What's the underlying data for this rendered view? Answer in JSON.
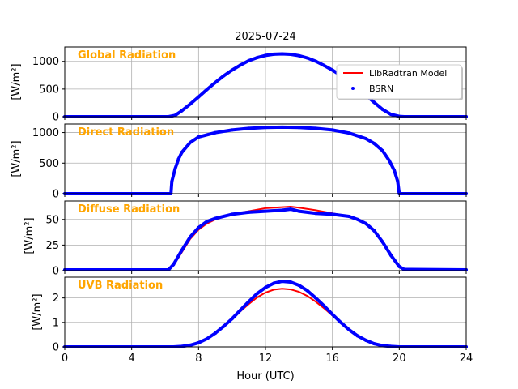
{
  "colors": {
    "model": "#ff0000",
    "obs": "#0000ff",
    "panel_title": "#ffa500",
    "grid": "#b0b0b0"
  },
  "figure": {
    "title": "2025-07-24",
    "xlabel": "Hour (UTC)"
  },
  "legend": {
    "model_label": "LibRadtran Model",
    "obs_label": "BSRN",
    "placement": "top-right of first panel"
  },
  "chart_data": [
    {
      "type": "line",
      "title": "Global Radiation",
      "xlabel": "",
      "ylabel": "[W/m²]",
      "xlim": [
        0,
        24
      ],
      "ylim": [
        0,
        1260
      ],
      "xticks": [
        0,
        4,
        8,
        12,
        16,
        20,
        24
      ],
      "yticks": [
        0,
        500,
        1000
      ],
      "grid": true,
      "series": [
        {
          "name": "LibRadtran Model",
          "style": "line",
          "x": [
            0,
            6.2,
            6.6,
            7,
            7.5,
            8,
            8.5,
            9,
            9.5,
            10,
            10.5,
            11,
            11.5,
            12,
            12.5,
            13,
            13.5,
            14,
            14.5,
            15,
            15.5,
            16,
            16.5,
            17,
            17.5,
            18,
            18.5,
            19,
            19.5,
            20,
            20.3,
            24
          ],
          "y": [
            0,
            0,
            25,
            105,
            225,
            355,
            490,
            615,
            735,
            840,
            930,
            1010,
            1065,
            1105,
            1128,
            1132,
            1125,
            1100,
            1060,
            1000,
            925,
            840,
            745,
            635,
            515,
            385,
            255,
            130,
            40,
            5,
            0,
            0
          ]
        },
        {
          "name": "BSRN",
          "style": "dots",
          "x": [
            0,
            6.2,
            6.6,
            7,
            7.5,
            8,
            8.5,
            9,
            9.5,
            10,
            10.5,
            11,
            11.5,
            12,
            12.5,
            13,
            13.5,
            14,
            14.5,
            15,
            15.5,
            16,
            16.5,
            17,
            17.5,
            18,
            18.5,
            19,
            19.5,
            20,
            20.3,
            24
          ],
          "y": [
            0,
            0,
            25,
            108,
            228,
            358,
            492,
            618,
            738,
            842,
            933,
            1012,
            1068,
            1108,
            1130,
            1135,
            1128,
            1103,
            1062,
            1003,
            928,
            843,
            748,
            638,
            518,
            388,
            258,
            132,
            42,
            6,
            0,
            0
          ]
        }
      ]
    },
    {
      "type": "line",
      "title": "Direct Radiation",
      "xlabel": "",
      "ylabel": "[W/m²]",
      "xlim": [
        0,
        24
      ],
      "ylim": [
        0,
        1140
      ],
      "xticks": [
        0,
        4,
        8,
        12,
        16,
        20,
        24
      ],
      "yticks": [
        0,
        500,
        1000
      ],
      "grid": true,
      "series": [
        {
          "name": "LibRadtran Model",
          "style": "line",
          "x": [
            0,
            6.35,
            6.4,
            6.6,
            6.8,
            7,
            7.5,
            8,
            9,
            10,
            11,
            12,
            13,
            14,
            15,
            16,
            17,
            18,
            18.5,
            19,
            19.4,
            19.7,
            19.9,
            20,
            24
          ],
          "y": [
            0,
            0,
            210,
            420,
            570,
            680,
            840,
            930,
            1000,
            1040,
            1065,
            1080,
            1085,
            1080,
            1065,
            1040,
            990,
            900,
            820,
            700,
            540,
            380,
            200,
            0,
            0
          ]
        },
        {
          "name": "BSRN",
          "style": "dots",
          "x": [
            0,
            6.35,
            6.4,
            6.6,
            6.8,
            7,
            7.5,
            8,
            9,
            10,
            11,
            12,
            13,
            14,
            15,
            16,
            17,
            18,
            18.5,
            19,
            19.4,
            19.7,
            19.9,
            20,
            24
          ],
          "y": [
            0,
            0,
            200,
            410,
            565,
            678,
            838,
            928,
            998,
            1042,
            1068,
            1083,
            1088,
            1083,
            1068,
            1042,
            992,
            902,
            822,
            702,
            542,
            382,
            205,
            0,
            0
          ]
        }
      ]
    },
    {
      "type": "line",
      "title": "Diffuse Radiation",
      "xlabel": "",
      "ylabel": "[W/m²]",
      "xlim": [
        0,
        24
      ],
      "ylim": [
        0,
        68
      ],
      "xticks": [
        0,
        4,
        8,
        12,
        16,
        20,
        24
      ],
      "yticks": [
        0,
        25,
        50
      ],
      "grid": true,
      "series": [
        {
          "name": "LibRadtran Model",
          "style": "line",
          "x": [
            0,
            6.2,
            6.5,
            7,
            7.5,
            8,
            8.5,
            9,
            10,
            11,
            12,
            13,
            13.5,
            14,
            15,
            16,
            17,
            17.5,
            18,
            18.5,
            19,
            19.5,
            20,
            20.3,
            24
          ],
          "y": [
            0.5,
            0.5,
            5,
            18,
            31,
            40,
            46,
            50,
            55,
            58,
            61,
            62,
            62.5,
            61.5,
            59,
            56,
            53,
            50,
            46,
            39,
            28,
            15,
            4,
            1,
            0.5
          ]
        },
        {
          "name": "BSRN",
          "style": "dots",
          "x": [
            0,
            6.2,
            6.5,
            7,
            7.5,
            8,
            8.5,
            9,
            10,
            11,
            12,
            13,
            13.5,
            14,
            15,
            16,
            17,
            17.5,
            18,
            18.5,
            19,
            19.5,
            20,
            20.3,
            24
          ],
          "y": [
            0.8,
            0.8,
            6,
            20,
            33,
            42,
            48,
            51,
            55,
            57,
            58,
            59,
            60,
            58,
            56,
            55,
            53,
            50,
            46,
            39,
            28,
            15,
            4,
            1.2,
            0.8
          ]
        }
      ]
    },
    {
      "type": "line",
      "title": "UVB Radiation",
      "xlabel": "Hour (UTC)",
      "ylabel": "[W/m²]",
      "xlim": [
        0,
        24
      ],
      "ylim": [
        0,
        2.85
      ],
      "xticks": [
        0,
        4,
        8,
        12,
        16,
        20,
        24
      ],
      "yticks": [
        0,
        1,
        2
      ],
      "grid": true,
      "series": [
        {
          "name": "LibRadtran Model",
          "style": "line",
          "x": [
            0,
            6.5,
            7,
            7.5,
            8,
            8.5,
            9,
            9.5,
            10,
            10.5,
            11,
            11.5,
            12,
            12.5,
            13,
            13.5,
            14,
            14.5,
            15,
            15.5,
            16,
            16.5,
            17,
            17.5,
            18,
            18.5,
            19,
            19.5,
            20,
            24
          ],
          "y": [
            0,
            0,
            0.02,
            0.07,
            0.17,
            0.33,
            0.55,
            0.82,
            1.12,
            1.45,
            1.75,
            2.02,
            2.22,
            2.34,
            2.38,
            2.35,
            2.25,
            2.08,
            1.85,
            1.58,
            1.28,
            0.98,
            0.7,
            0.46,
            0.28,
            0.14,
            0.06,
            0.02,
            0,
            0
          ]
        },
        {
          "name": "BSRN",
          "style": "dots",
          "x": [
            0,
            6.5,
            7,
            7.5,
            8,
            8.5,
            9,
            9.5,
            10,
            10.5,
            11,
            11.5,
            12,
            12.5,
            13,
            13.5,
            14,
            14.5,
            15,
            15.5,
            16,
            16.5,
            17,
            17.5,
            18,
            18.5,
            19,
            19.5,
            20,
            24
          ],
          "y": [
            0,
            0,
            0.02,
            0.07,
            0.17,
            0.33,
            0.56,
            0.84,
            1.15,
            1.5,
            1.85,
            2.18,
            2.43,
            2.6,
            2.68,
            2.65,
            2.52,
            2.3,
            2.0,
            1.68,
            1.33,
            1.0,
            0.7,
            0.45,
            0.27,
            0.13,
            0.05,
            0.02,
            0,
            0
          ]
        }
      ]
    }
  ]
}
